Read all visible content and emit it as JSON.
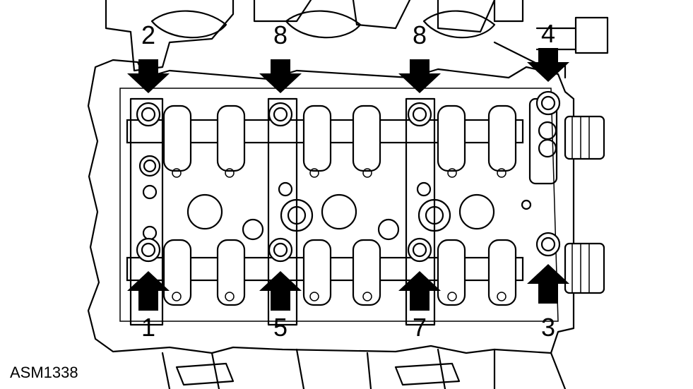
{
  "figure_id": "ASM1338",
  "callouts": [
    {
      "label": "2",
      "arrow_direction": "down"
    },
    {
      "label": "8",
      "arrow_direction": "down"
    },
    {
      "label": "8",
      "arrow_direction": "down"
    },
    {
      "label": "4",
      "arrow_direction": "down"
    },
    {
      "label": "1",
      "arrow_direction": "up"
    },
    {
      "label": "5",
      "arrow_direction": "up"
    },
    {
      "label": "7",
      "arrow_direction": "up"
    },
    {
      "label": "3",
      "arrow_direction": "up"
    }
  ]
}
